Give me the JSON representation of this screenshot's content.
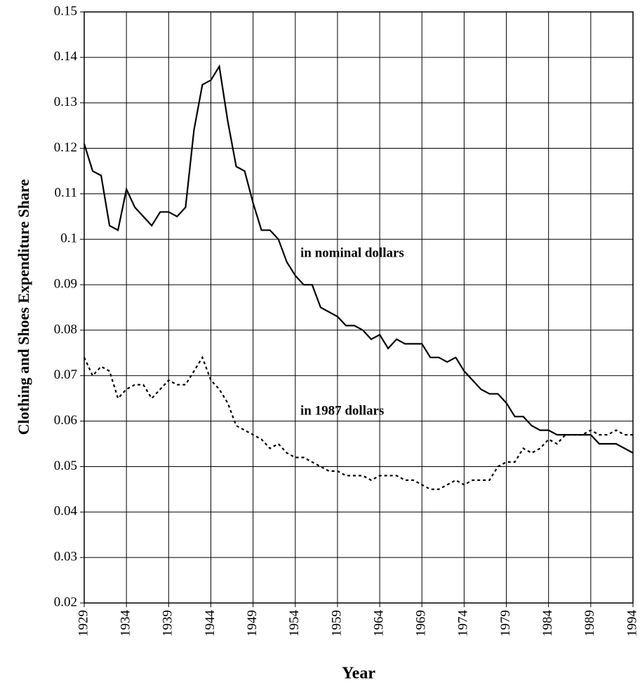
{
  "chart_data": {
    "type": "line",
    "x_label": "Year",
    "y_label": "Clothing and Shoes Expenditure Share",
    "x": [
      1929,
      1930,
      1931,
      1932,
      1933,
      1934,
      1935,
      1936,
      1937,
      1938,
      1939,
      1940,
      1941,
      1942,
      1943,
      1944,
      1945,
      1946,
      1947,
      1948,
      1949,
      1950,
      1951,
      1952,
      1953,
      1954,
      1955,
      1956,
      1957,
      1958,
      1959,
      1960,
      1961,
      1962,
      1963,
      1964,
      1965,
      1966,
      1967,
      1968,
      1969,
      1970,
      1971,
      1972,
      1973,
      1974,
      1975,
      1976,
      1977,
      1978,
      1979,
      1980,
      1981,
      1982,
      1983,
      1984,
      1985,
      1986,
      1987,
      1988,
      1989,
      1990,
      1991,
      1992,
      1993,
      1994
    ],
    "series": [
      {
        "name": "in nominal dollars",
        "color": "#000000",
        "dash": "solid",
        "values": [
          0.121,
          0.115,
          0.114,
          0.103,
          0.102,
          0.111,
          0.107,
          0.105,
          0.103,
          0.106,
          0.106,
          0.105,
          0.107,
          0.124,
          0.134,
          0.135,
          0.138,
          0.126,
          0.116,
          0.115,
          0.108,
          0.102,
          0.102,
          0.1,
          0.095,
          0.092,
          0.09,
          0.09,
          0.085,
          0.084,
          0.083,
          0.081,
          0.081,
          0.08,
          0.078,
          0.079,
          0.076,
          0.078,
          0.077,
          0.077,
          0.077,
          0.074,
          0.074,
          0.073,
          0.074,
          0.071,
          0.069,
          0.067,
          0.066,
          0.066,
          0.064,
          0.061,
          0.061,
          0.059,
          0.058,
          0.058,
          0.057,
          0.057,
          0.057,
          0.057,
          0.057,
          0.055,
          0.055,
          0.055,
          0.054,
          0.053
        ]
      },
      {
        "name": "in 1987 dollars",
        "color": "#000000",
        "dash": "dashed",
        "values": [
          0.074,
          0.07,
          0.072,
          0.071,
          0.065,
          0.067,
          0.068,
          0.068,
          0.065,
          0.067,
          0.069,
          0.068,
          0.068,
          0.071,
          0.074,
          0.069,
          0.067,
          0.064,
          0.059,
          0.058,
          0.057,
          0.056,
          0.054,
          0.055,
          0.053,
          0.052,
          0.052,
          0.051,
          0.05,
          0.049,
          0.049,
          0.048,
          0.048,
          0.048,
          0.047,
          0.048,
          0.048,
          0.048,
          0.047,
          0.047,
          0.046,
          0.045,
          0.045,
          0.046,
          0.047,
          0.046,
          0.047,
          0.047,
          0.047,
          0.05,
          0.051,
          0.051,
          0.054,
          0.053,
          0.054,
          0.056,
          0.055,
          0.057,
          0.057,
          0.057,
          0.058,
          0.057,
          0.057,
          0.058,
          0.057,
          0.057
        ]
      }
    ],
    "xlim": [
      1929,
      1994
    ],
    "xticks": [
      1929,
      1934,
      1939,
      1944,
      1949,
      1954,
      1959,
      1964,
      1969,
      1974,
      1979,
      1984,
      1989,
      1994
    ],
    "ylim": [
      0.02,
      0.15
    ],
    "yticks": [
      0.02,
      0.03,
      0.04,
      0.05,
      0.06,
      0.07,
      0.08,
      0.09,
      0.1,
      0.11,
      0.12,
      0.13,
      0.14,
      0.15
    ],
    "grid": true
  }
}
